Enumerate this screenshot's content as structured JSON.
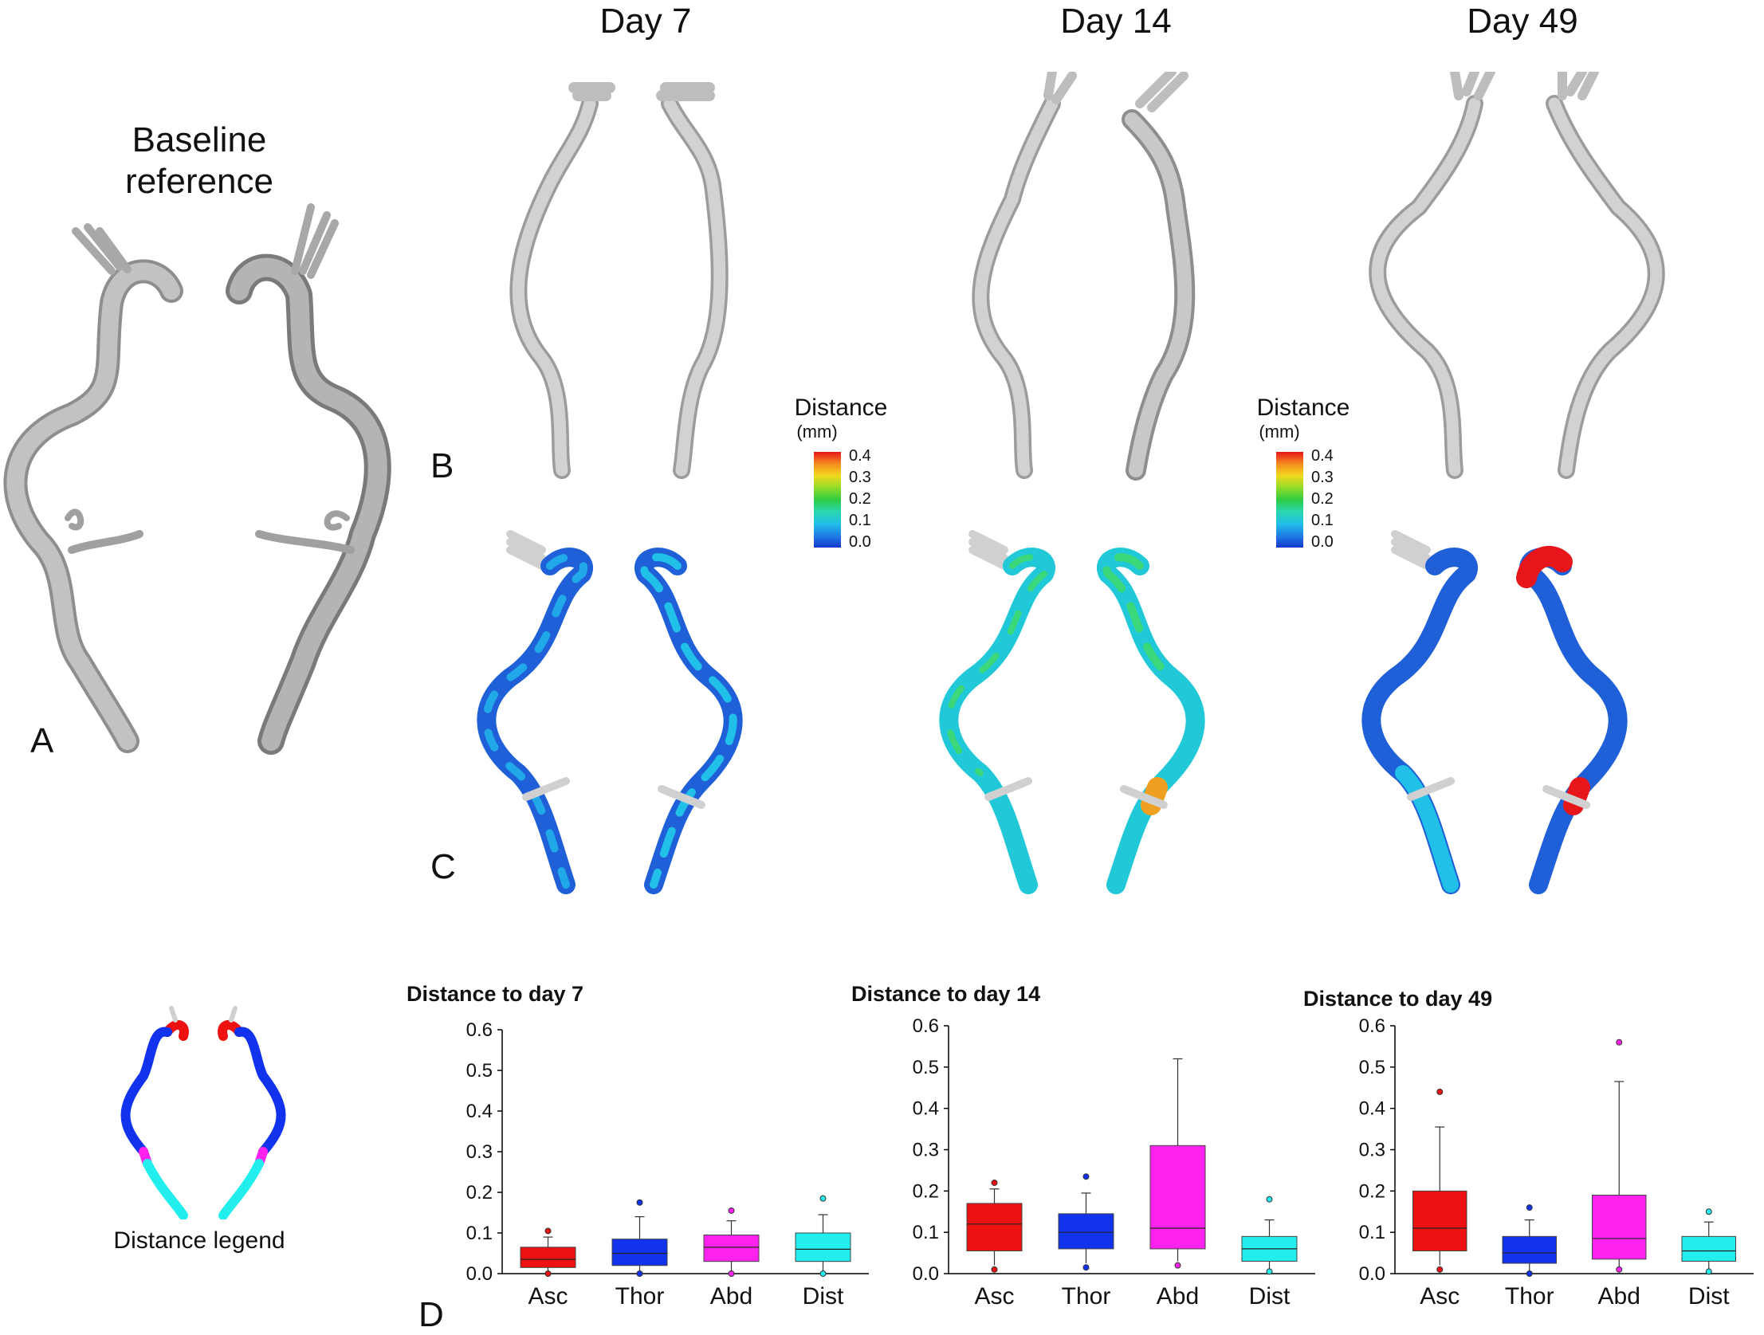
{
  "columns": [
    "Day 7",
    "Day 14",
    "Day 49"
  ],
  "baseline": {
    "line1": "Baseline",
    "line2": "reference"
  },
  "panel_letters": {
    "a": "A",
    "b": "B",
    "c": "C",
    "d": "D"
  },
  "distance_legend": {
    "title": "Distance",
    "unit": "(mm)",
    "ticks": [
      "0.4",
      "0.3",
      "0.2",
      "0.1",
      "0.0"
    ],
    "colors": [
      "#e6161a",
      "#f58b1f",
      "#f2d91c",
      "#8fdc2a",
      "#2ecc40",
      "#2bd6b0",
      "#21c0e8",
      "#1f7ee6",
      "#1238c9"
    ]
  },
  "segment_legend_label": "Distance legend",
  "segment_colors": {
    "Asc": "#ee1111",
    "Thor": "#1133ee",
    "Abd": "#ff22ee",
    "Dist": "#22eeee"
  },
  "chart_data": [
    {
      "type": "box",
      "title": "Distance to day 7",
      "categories": [
        "Asc",
        "Thor",
        "Abd",
        "Dist"
      ],
      "ylim": [
        0,
        0.6
      ],
      "yticks": [
        "0.0",
        "0.1",
        "0.2",
        "0.3",
        "0.4",
        "0.5",
        "0.6"
      ],
      "boxes": [
        {
          "name": "Asc",
          "min": 0.0,
          "q1": 0.015,
          "median": 0.035,
          "q3": 0.065,
          "max": 0.09,
          "outliers": [
            0.105,
            0.0
          ]
        },
        {
          "name": "Thor",
          "min": 0.0,
          "q1": 0.02,
          "median": 0.05,
          "q3": 0.085,
          "max": 0.14,
          "outliers": [
            0.175,
            0.0
          ]
        },
        {
          "name": "Abd",
          "min": 0.0,
          "q1": 0.03,
          "median": 0.065,
          "q3": 0.095,
          "max": 0.13,
          "outliers": [
            0.155,
            0.0
          ]
        },
        {
          "name": "Dist",
          "min": 0.0,
          "q1": 0.03,
          "median": 0.06,
          "q3": 0.1,
          "max": 0.145,
          "outliers": [
            0.185,
            0.0
          ]
        }
      ]
    },
    {
      "type": "box",
      "title": "Distance to day 14",
      "categories": [
        "Asc",
        "Thor",
        "Abd",
        "Dist"
      ],
      "ylim": [
        0,
        0.6
      ],
      "yticks": [
        "0.0",
        "0.1",
        "0.2",
        "0.3",
        "0.4",
        "0.5",
        "0.6"
      ],
      "boxes": [
        {
          "name": "Asc",
          "min": 0.02,
          "q1": 0.055,
          "median": 0.12,
          "q3": 0.17,
          "max": 0.205,
          "outliers": [
            0.22,
            0.01
          ]
        },
        {
          "name": "Thor",
          "min": 0.025,
          "q1": 0.06,
          "median": 0.1,
          "q3": 0.145,
          "max": 0.195,
          "outliers": [
            0.235,
            0.015
          ]
        },
        {
          "name": "Abd",
          "min": 0.03,
          "q1": 0.06,
          "median": 0.11,
          "q3": 0.31,
          "max": 0.52,
          "outliers": [
            0.02
          ]
        },
        {
          "name": "Dist",
          "min": 0.01,
          "q1": 0.03,
          "median": 0.06,
          "q3": 0.09,
          "max": 0.13,
          "outliers": [
            0.18,
            0.005
          ]
        }
      ]
    },
    {
      "type": "box",
      "title": "Distance to day 49",
      "categories": [
        "Asc",
        "Thor",
        "Abd",
        "Dist"
      ],
      "ylim": [
        0,
        0.6
      ],
      "yticks": [
        "0.0",
        "0.1",
        "0.2",
        "0.3",
        "0.4",
        "0.5",
        "0.6"
      ],
      "boxes": [
        {
          "name": "Asc",
          "min": 0.02,
          "q1": 0.055,
          "median": 0.11,
          "q3": 0.2,
          "max": 0.355,
          "outliers": [
            0.44,
            0.01
          ]
        },
        {
          "name": "Thor",
          "min": 0.005,
          "q1": 0.025,
          "median": 0.05,
          "q3": 0.09,
          "max": 0.13,
          "outliers": [
            0.16,
            0.0
          ]
        },
        {
          "name": "Abd",
          "min": 0.01,
          "q1": 0.035,
          "median": 0.085,
          "q3": 0.19,
          "max": 0.465,
          "outliers": [
            0.56,
            0.01
          ]
        },
        {
          "name": "Dist",
          "min": 0.01,
          "q1": 0.03,
          "median": 0.055,
          "q3": 0.09,
          "max": 0.125,
          "outliers": [
            0.15,
            0.005
          ]
        }
      ]
    }
  ]
}
